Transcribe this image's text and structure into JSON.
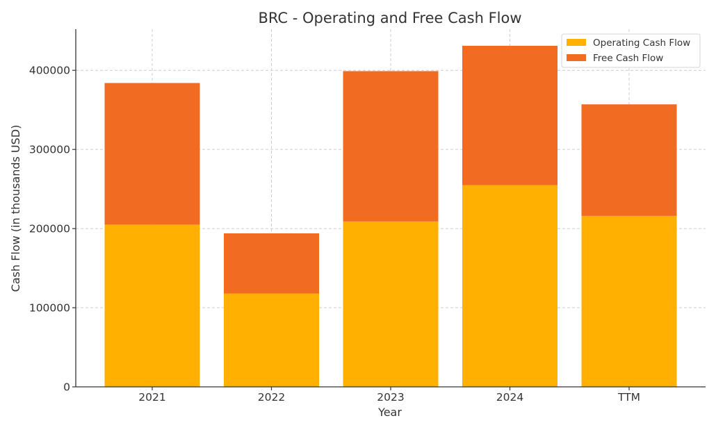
{
  "chart_data": {
    "type": "bar",
    "stacked": true,
    "title": "BRC - Operating and Free Cash Flow",
    "xlabel": "Year",
    "ylabel": "Cash Flow (in thousands USD)",
    "categories": [
      "2021",
      "2022",
      "2023",
      "2024",
      "TTM"
    ],
    "series": [
      {
        "name": "Operating Cash Flow",
        "color": "#FFB000",
        "values": [
          205000,
          118000,
          209000,
          255000,
          216000
        ]
      },
      {
        "name": "Free Cash Flow",
        "color": "#F26B22",
        "values": [
          179000,
          76000,
          190000,
          176000,
          141000
        ]
      }
    ],
    "ylim": [
      0,
      452000
    ],
    "yticks": [
      0,
      100000,
      200000,
      300000,
      400000
    ],
    "ytick_labels": [
      "0",
      "100000",
      "200000",
      "300000",
      "400000"
    ],
    "grid": true,
    "legend_position": "top-right"
  }
}
